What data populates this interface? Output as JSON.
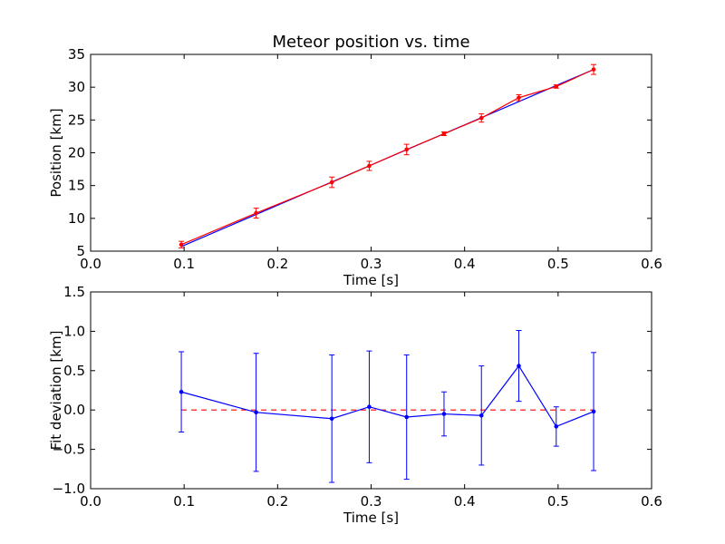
{
  "chart_data": [
    {
      "type": "line",
      "title": "Meteor position vs. time",
      "xlabel": "Time [s]",
      "ylabel": "Position [km]",
      "xlim": [
        0.0,
        0.6
      ],
      "ylim": [
        5,
        35
      ],
      "x_ticks": [
        "0.0",
        "0.1",
        "0.2",
        "0.3",
        "0.4",
        "0.5",
        "0.6"
      ],
      "y_ticks": [
        "5",
        "10",
        "15",
        "20",
        "25",
        "30",
        "35"
      ],
      "x_tick_values": [
        0.0,
        0.1,
        0.2,
        0.3,
        0.4,
        0.5,
        0.6
      ],
      "y_tick_values": [
        5,
        10,
        15,
        20,
        25,
        30,
        35
      ],
      "grid": false,
      "series": [
        {
          "kind": "fit-line",
          "color": "#0000ff",
          "x": [
            0.097,
            0.538
          ],
          "y": [
            5.7,
            32.7
          ]
        },
        {
          "kind": "measurements",
          "color": "#ff0000",
          "x": [
            0.097,
            0.177,
            0.258,
            0.298,
            0.338,
            0.378,
            0.418,
            0.458,
            0.498,
            0.538
          ],
          "y": [
            6.0,
            10.8,
            15.5,
            18.0,
            20.5,
            22.9,
            25.3,
            28.4,
            30.1,
            32.7
          ],
          "yerr": [
            0.5,
            0.75,
            0.8,
            0.7,
            0.8,
            0.28,
            0.63,
            0.45,
            0.25,
            0.75
          ]
        }
      ]
    },
    {
      "type": "line",
      "title": "",
      "xlabel": "Time [s]",
      "ylabel": "Fit deviation [km]",
      "xlim": [
        0.0,
        0.6
      ],
      "ylim": [
        -1.0,
        1.5
      ],
      "x_ticks": [
        "0.0",
        "0.1",
        "0.2",
        "0.3",
        "0.4",
        "0.5",
        "0.6"
      ],
      "y_ticks": [
        "−1.0",
        "−0.5",
        "0.0",
        "0.5",
        "1.0",
        "1.5"
      ],
      "x_tick_values": [
        0.0,
        0.1,
        0.2,
        0.3,
        0.4,
        0.5,
        0.6
      ],
      "y_tick_values": [
        -1.0,
        -0.5,
        0.0,
        0.5,
        1.0,
        1.5
      ],
      "grid": false,
      "series": [
        {
          "kind": "zero-reference",
          "color": "#ff0000",
          "dashed": true,
          "x": [
            0.097,
            0.538
          ],
          "y": [
            0.0,
            0.0
          ]
        },
        {
          "kind": "residuals",
          "color": "#0000ff",
          "x": [
            0.097,
            0.177,
            0.258,
            0.298,
            0.338,
            0.378,
            0.418,
            0.458,
            0.498,
            0.538
          ],
          "y": [
            0.23,
            -0.03,
            -0.11,
            0.04,
            -0.09,
            -0.05,
            -0.07,
            0.56,
            -0.21,
            -0.02
          ],
          "yerr": [
            0.51,
            0.75,
            0.81,
            0.71,
            0.79,
            0.28,
            0.63,
            0.45,
            0.25,
            0.75
          ]
        }
      ]
    }
  ]
}
